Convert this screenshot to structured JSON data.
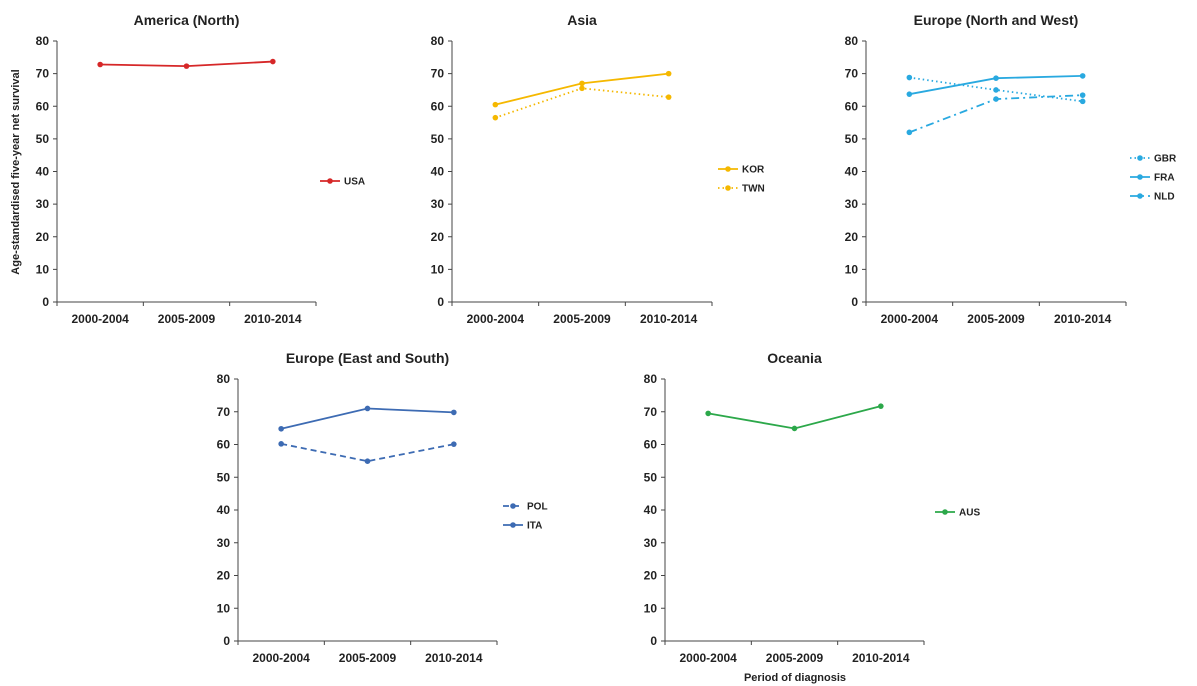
{
  "figure": {
    "ylabel": "Age-standardised five-year net survival",
    "xlabel": "Period of diagnosis"
  },
  "chart_data": [
    {
      "type": "line",
      "title": "America (North)",
      "categories": [
        "2000-2004",
        "2005-2009",
        "2010-2014"
      ],
      "ylim": [
        0,
        80
      ],
      "yticks": [
        0,
        10,
        20,
        30,
        40,
        50,
        60,
        70,
        80
      ],
      "grid": false,
      "legend_position": "right",
      "series": [
        {
          "name": "USA",
          "values": [
            72.8,
            72.3,
            73.7
          ],
          "color": "#d62728",
          "dash": "solid"
        }
      ]
    },
    {
      "type": "line",
      "title": "Asia",
      "categories": [
        "2000-2004",
        "2005-2009",
        "2010-2014"
      ],
      "ylim": [
        0,
        80
      ],
      "yticks": [
        0,
        10,
        20,
        30,
        40,
        50,
        60,
        70,
        80
      ],
      "grid": false,
      "legend_position": "right",
      "series": [
        {
          "name": "KOR",
          "values": [
            60.5,
            67.0,
            70.0
          ],
          "color": "#f5b800",
          "dash": "solid"
        },
        {
          "name": "TWN",
          "values": [
            56.5,
            65.5,
            62.8
          ],
          "color": "#f5b800",
          "dash": "dotted"
        }
      ]
    },
    {
      "type": "line",
      "title": "Europe (North and West)",
      "categories": [
        "2000-2004",
        "2005-2009",
        "2010-2014"
      ],
      "ylim": [
        0,
        80
      ],
      "yticks": [
        0,
        10,
        20,
        30,
        40,
        50,
        60,
        70,
        80
      ],
      "grid": false,
      "legend_position": "right",
      "series": [
        {
          "name": "GBR",
          "values": [
            68.8,
            65.0,
            61.5
          ],
          "color": "#29a9e0",
          "dash": "dotted"
        },
        {
          "name": "FRA",
          "values": [
            63.7,
            68.6,
            69.3
          ],
          "color": "#29a9e0",
          "dash": "solid"
        },
        {
          "name": "NLD",
          "values": [
            52.0,
            62.2,
            63.4
          ],
          "color": "#29a9e0",
          "dash": "dashdot"
        }
      ]
    },
    {
      "type": "line",
      "title": "Europe (East and South)",
      "categories": [
        "2000-2004",
        "2005-2009",
        "2010-2014"
      ],
      "ylim": [
        0,
        80
      ],
      "yticks": [
        0,
        10,
        20,
        30,
        40,
        50,
        60,
        70,
        80
      ],
      "grid": false,
      "legend_position": "right",
      "series": [
        {
          "name": "POL",
          "values": [
            60.2,
            54.9,
            60.1
          ],
          "color": "#3d6bb3",
          "dash": "dashed"
        },
        {
          "name": "ITA",
          "values": [
            64.8,
            71.0,
            69.8
          ],
          "color": "#3d6bb3",
          "dash": "solid"
        }
      ]
    },
    {
      "type": "line",
      "title": "Oceania",
      "categories": [
        "2000-2004",
        "2005-2009",
        "2010-2014"
      ],
      "ylim": [
        0,
        80
      ],
      "yticks": [
        0,
        10,
        20,
        30,
        40,
        50,
        60,
        70,
        80
      ],
      "grid": false,
      "legend_position": "right",
      "series": [
        {
          "name": "AUS",
          "values": [
            69.5,
            64.9,
            71.7
          ],
          "color": "#2ca84a",
          "dash": "solid"
        }
      ]
    }
  ]
}
